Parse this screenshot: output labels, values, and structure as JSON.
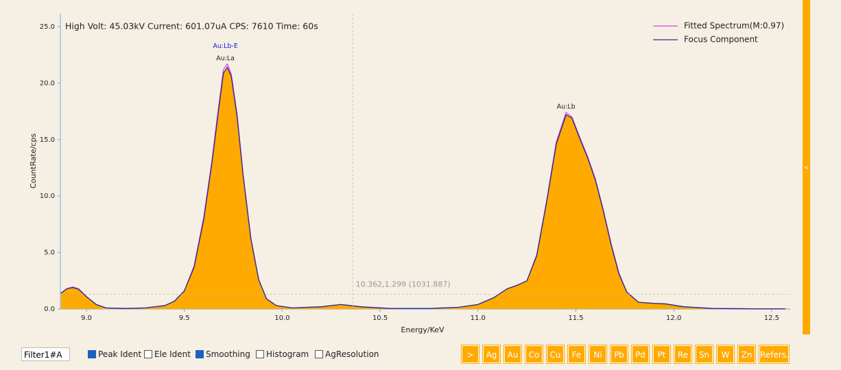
{
  "chart_data": {
    "type": "line",
    "title": "High Volt: 45.03kV  Current: 601.07uA  CPS: 7610  Time: 60s",
    "title_color": "#e0141e",
    "x_label": "Energy/KeV",
    "y_label": "CountRate/cps",
    "x": [
      8.87,
      8.9,
      8.93,
      8.96,
      9.0,
      9.05,
      9.1,
      9.2,
      9.3,
      9.4,
      9.45,
      9.5,
      9.55,
      9.6,
      9.64,
      9.67,
      9.7,
      9.72,
      9.74,
      9.77,
      9.8,
      9.84,
      9.88,
      9.92,
      9.97,
      10.05,
      10.2,
      10.3,
      10.4,
      10.55,
      10.75,
      10.9,
      11.0,
      11.08,
      11.15,
      11.2,
      11.25,
      11.3,
      11.35,
      11.4,
      11.45,
      11.48,
      11.52,
      11.56,
      11.6,
      11.64,
      11.68,
      11.72,
      11.76,
      11.82,
      11.9,
      11.96,
      12.05,
      12.2,
      12.4,
      12.57
    ],
    "series": [
      {
        "name": "Fitted Spectrum(M:0.97)",
        "color": "#e040e0",
        "values": [
          1.4,
          1.8,
          1.95,
          1.8,
          1.1,
          0.4,
          0.1,
          0.05,
          0.1,
          0.3,
          0.7,
          1.6,
          3.8,
          8.2,
          13.0,
          17.2,
          21.2,
          21.7,
          20.8,
          17.2,
          12.0,
          6.3,
          2.6,
          0.9,
          0.3,
          0.1,
          0.2,
          0.4,
          0.2,
          0.05,
          0.05,
          0.15,
          0.4,
          1.0,
          1.8,
          2.1,
          2.5,
          4.8,
          9.5,
          14.8,
          17.4,
          17.0,
          15.2,
          13.5,
          11.5,
          8.8,
          5.8,
          3.2,
          1.5,
          0.6,
          0.5,
          0.45,
          0.2,
          0.05,
          0.02,
          0.02
        ]
      },
      {
        "name": "Focus Component",
        "color": "#2a2a8a",
        "fill_color": "#ffaa00",
        "values": [
          1.4,
          1.8,
          1.9,
          1.75,
          1.1,
          0.4,
          0.1,
          0.05,
          0.1,
          0.3,
          0.7,
          1.6,
          3.7,
          8.0,
          12.8,
          16.9,
          20.9,
          21.4,
          20.6,
          17.0,
          11.9,
          6.2,
          2.6,
          0.9,
          0.3,
          0.1,
          0.2,
          0.4,
          0.2,
          0.05,
          0.05,
          0.15,
          0.4,
          1.0,
          1.8,
          2.1,
          2.5,
          4.7,
          9.4,
          14.6,
          17.2,
          16.9,
          15.1,
          13.4,
          11.4,
          8.7,
          5.7,
          3.1,
          1.5,
          0.6,
          0.5,
          0.45,
          0.2,
          0.05,
          0.02,
          0.02
        ]
      }
    ],
    "xlim": [
      8.867,
      12.595
    ],
    "ylim": [
      0,
      26.15
    ],
    "xticks": [
      {
        "value": 9,
        "label": "9.0"
      },
      9.5,
      {
        "value": 10,
        "label": "10.0"
      },
      10.5,
      {
        "value": 11,
        "label": "11.0"
      },
      11.5,
      {
        "value": 12,
        "label": "12.0"
      },
      12.5
    ],
    "yticks": [
      {
        "value": 0,
        "label": "0.0"
      },
      {
        "value": 5,
        "label": "5.0"
      },
      {
        "value": 10,
        "label": "10.0"
      },
      {
        "value": 15,
        "label": "15.0"
      },
      {
        "value": 20,
        "label": "20.0"
      },
      {
        "value": 25,
        "label": "25.0"
      }
    ],
    "peak_labels": [
      {
        "text": "Au:Lb-E",
        "x": 9.71,
        "y": 21.7,
        "color": "#2020e0",
        "row": 2
      },
      {
        "text": "Au:La",
        "x": 9.71,
        "y": 21.7,
        "color": "#222222",
        "row": 1
      },
      {
        "text": "Au:Lb",
        "x": 11.45,
        "y": 17.4,
        "color": "#222222",
        "row": 1
      }
    ],
    "cursor": {
      "x": 10.362,
      "y": 1.299,
      "label": "10.362,1.299 (1031.887)"
    }
  },
  "controls": {
    "filter": "Filter1#A",
    "checkboxes": [
      {
        "label": "Peak Ident",
        "checked": true
      },
      {
        "label": "Ele Ident",
        "checked": false
      },
      {
        "label": "Smoothing",
        "checked": true
      },
      {
        "label": "Histogram",
        "checked": false
      },
      {
        "label": "AgResolution",
        "checked": false
      }
    ],
    "buttons": [
      ">",
      "Ag",
      "Au",
      "Co",
      "Cu",
      "Fe",
      "Ni",
      "Pb",
      "Pd",
      "Pt",
      "Re",
      "Sn",
      "W",
      "Zn",
      "Refers.."
    ],
    "side_toggle": "<"
  }
}
